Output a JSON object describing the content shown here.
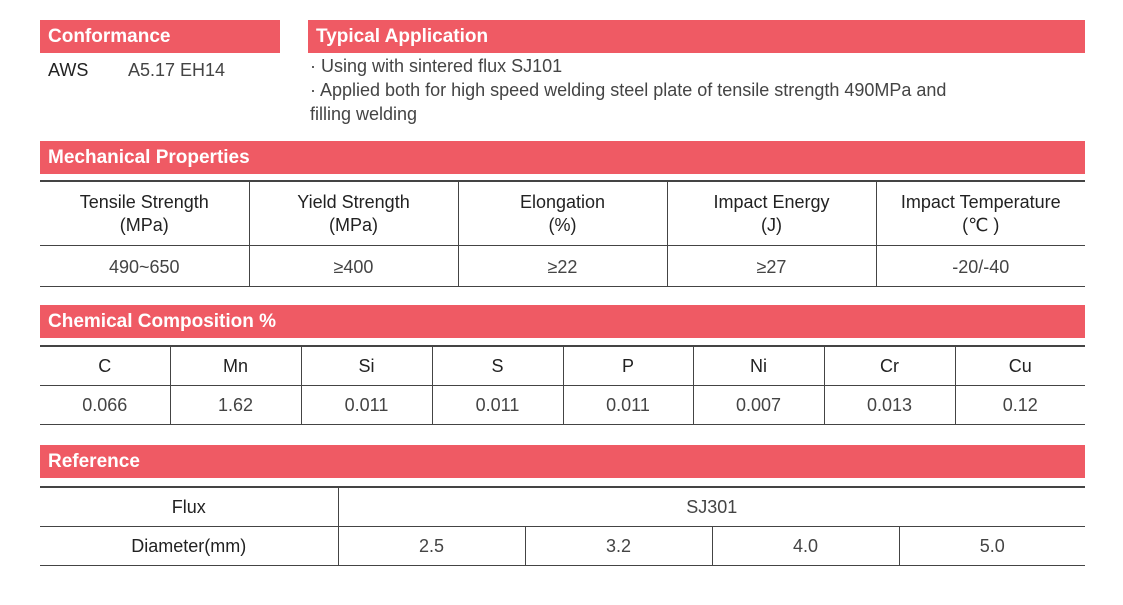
{
  "conformance": {
    "title": "Conformance",
    "standard_label": "AWS",
    "standard_value": "A5.17 EH14"
  },
  "typical_application": {
    "title": "Typical Application",
    "items": [
      "· Using with sintered flux SJ101",
      "· Applied both for high speed welding steel plate of tensile strength 490MPa and",
      "filling welding"
    ]
  },
  "mechanical_properties": {
    "title": "Mechanical Properties",
    "columns": [
      {
        "name": "Tensile Strength",
        "unit": "(MPa)",
        "value": "490~650"
      },
      {
        "name": "Yield Strength",
        "unit": "(MPa)",
        "value": "≥400"
      },
      {
        "name": "Elongation",
        "unit": "(%)",
        "value": "≥22"
      },
      {
        "name": "Impact Energy",
        "unit": "(J)",
        "value": "≥27"
      },
      {
        "name": "Impact Temperature",
        "unit": "(℃ )",
        "value": "-20/-40"
      }
    ]
  },
  "chemical_composition": {
    "title": "Chemical Composition %",
    "elements": [
      "C",
      "Mn",
      "Si",
      "S",
      "P",
      "Ni",
      "Cr",
      "Cu"
    ],
    "values": [
      "0.066",
      "1.62",
      "0.011",
      "0.011",
      "0.011",
      "0.007",
      "0.013",
      "0.12"
    ]
  },
  "reference": {
    "title": "Reference",
    "flux_label": "Flux",
    "flux_value": "SJ301",
    "diameter_label": "Diameter(mm)",
    "diameters": [
      "2.5",
      "3.2",
      "4.0",
      "5.0"
    ]
  },
  "colors": {
    "accent": "#ef5a64",
    "text": "#222222",
    "rule": "#444444"
  }
}
